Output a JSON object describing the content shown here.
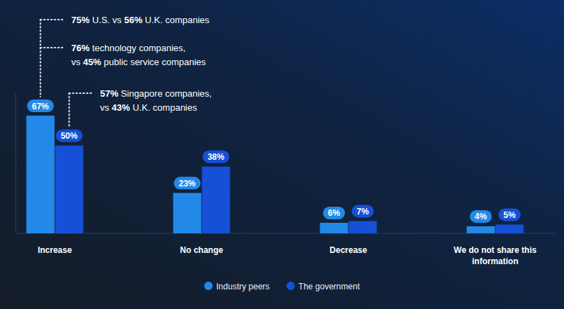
{
  "chart_data": {
    "type": "bar",
    "categories": [
      "Increase",
      "No change",
      "Decrease",
      "We do not share this information"
    ],
    "series": [
      {
        "name": "Industry peers",
        "color": "#2289e8",
        "values": [
          67,
          23,
          6,
          4
        ],
        "value_labels": [
          "67%",
          "23%",
          "6%",
          "4%"
        ]
      },
      {
        "name": "The government",
        "color": "#1550d6",
        "values": [
          50,
          38,
          7,
          5
        ],
        "value_labels": [
          "50%",
          "38%",
          "7%",
          "5%"
        ]
      }
    ],
    "ylim": [
      0,
      80
    ],
    "yticks": [
      0
    ],
    "tick_labels": false,
    "data_labels": true,
    "legend": "bottom",
    "annotations": [
      {
        "text": [
          "75% U.S. vs 56% U.K. companies"
        ],
        "category": "Increase",
        "series": "Industry peers"
      },
      {
        "text": [
          "76% technology companies,",
          "vs 45% public service companies"
        ],
        "category": "Increase",
        "series": "Industry peers"
      },
      {
        "text": [
          "57% Singapore companies,",
          "vs 43% U.K. companies"
        ],
        "category": "Increase",
        "series": "The government"
      }
    ]
  }
}
